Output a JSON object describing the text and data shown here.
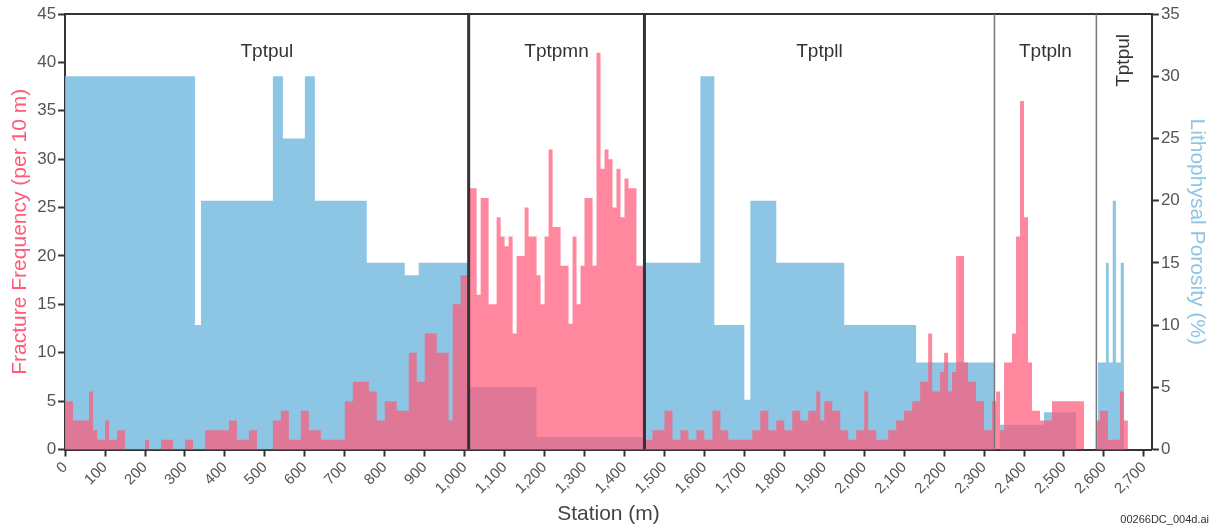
{
  "chart_data": {
    "type": "area",
    "xlabel": "Station (m)",
    "ylabel": "Fracture Frequency (per 10 m)",
    "y2label": "Lithophysal Porosity (%)",
    "xlim": [
      0,
      2720
    ],
    "xticks": [
      0,
      100,
      200,
      300,
      400,
      500,
      600,
      700,
      800,
      900,
      {
        "value": 1000,
        "label": "1,000"
      },
      {
        "value": 1100,
        "label": "1,100"
      },
      {
        "value": 1200,
        "label": "1,200"
      },
      {
        "value": 1300,
        "label": "1,300"
      },
      {
        "value": 1400,
        "label": "1,400"
      },
      {
        "value": 1500,
        "label": "1,500"
      },
      {
        "value": 1600,
        "label": "1,600"
      },
      {
        "value": 1700,
        "label": "1,700"
      },
      {
        "value": 1800,
        "label": "1,800"
      },
      {
        "value": 1900,
        "label": "1,900"
      },
      {
        "value": 2000,
        "label": "2,000"
      },
      {
        "value": 2100,
        "label": "2,100"
      },
      {
        "value": 2200,
        "label": "2,200"
      },
      {
        "value": 2300,
        "label": "2,300"
      },
      {
        "value": 2400,
        "label": "2,400"
      },
      {
        "value": 2500,
        "label": "2,500"
      },
      {
        "value": 2600,
        "label": "2,600"
      },
      {
        "value": 2700,
        "label": "2,700"
      }
    ],
    "ylim": [
      0,
      45
    ],
    "yticks": [
      0,
      5,
      10,
      15,
      20,
      25,
      30,
      35,
      40,
      45
    ],
    "y2lim": [
      0,
      35
    ],
    "y2ticks": [
      0,
      5,
      10,
      15,
      20,
      25,
      30,
      35
    ],
    "series": [
      {
        "color": "#ff5a78",
        "x": [
          0,
          20,
          20,
          60,
          60,
          70,
          70,
          80,
          80,
          100,
          100,
          110,
          110,
          130,
          130,
          150,
          150,
          200,
          200,
          210,
          210,
          240,
          240,
          270,
          270,
          300,
          300,
          320,
          320,
          350,
          350,
          410,
          410,
          430,
          430,
          460,
          460,
          480,
          480,
          520,
          520,
          540,
          540,
          560,
          560,
          590,
          590,
          610,
          610,
          640,
          640,
          700,
          700,
          720,
          720,
          760,
          760,
          780,
          780,
          800,
          800,
          830,
          830,
          860,
          860,
          880,
          880,
          900,
          900,
          930,
          930,
          960,
          960,
          970,
          970,
          990,
          990,
          1010,
          1010,
          1030,
          1030,
          1040,
          1040,
          1060,
          1060,
          1080,
          1080,
          1090,
          1090,
          1100,
          1100,
          1110,
          1110,
          1120,
          1120,
          1130,
          1130,
          1150,
          1150,
          1160,
          1160,
          1180,
          1180,
          1190,
          1190,
          1200,
          1200,
          1210,
          1210,
          1220,
          1220,
          1240,
          1240,
          1260,
          1260,
          1270,
          1270,
          1280,
          1280,
          1290,
          1290,
          1300,
          1300,
          1320,
          1320,
          1330,
          1330,
          1340,
          1340,
          1350,
          1350,
          1360,
          1360,
          1370,
          1370,
          1380,
          1380,
          1390,
          1390,
          1400,
          1400,
          1410,
          1410,
          1430,
          1430,
          1450,
          1450,
          1470,
          1470,
          1500,
          1500,
          1520,
          1520,
          1540,
          1540,
          1560,
          1560,
          1580,
          1580,
          1600,
          1600,
          1620,
          1620,
          1640,
          1640,
          1660,
          1660,
          1720,
          1720,
          1740,
          1740,
          1760,
          1760,
          1780,
          1780,
          1800,
          1800,
          1820,
          1820,
          1840,
          1840,
          1860,
          1860,
          1880,
          1880,
          1890,
          1890,
          1900,
          1900,
          1920,
          1920,
          1940,
          1940,
          1960,
          1960,
          1980,
          1980,
          2000,
          2000,
          2010,
          2010,
          2030,
          2030,
          2060,
          2060,
          2080,
          2080,
          2100,
          2100,
          2120,
          2120,
          2140,
          2140,
          2160,
          2160,
          2170,
          2170,
          2190,
          2190,
          2200,
          2200,
          2210,
          2210,
          2220,
          2220,
          2230,
          2230,
          2250,
          2250,
          2260,
          2260,
          2280,
          2280,
          2300,
          2300,
          2320,
          2320,
          2330,
          2330,
          2340,
          2340,
          2350,
          2350,
          2370,
          2370,
          2380,
          2380,
          2390,
          2390,
          2400,
          2400,
          2410,
          2410,
          2420,
          2420,
          2440,
          2440,
          2470,
          2470,
          2550,
          2550,
          2580,
          2580,
          2590,
          2590,
          2610,
          2610,
          2640,
          2640,
          2650,
          2650,
          2660,
          2660
        ],
        "values": [
          5,
          5,
          3,
          3,
          6,
          6,
          2,
          2,
          1,
          1,
          3,
          3,
          1,
          1,
          2,
          2,
          0,
          0,
          1,
          1,
          0,
          0,
          1,
          1,
          0,
          0,
          1,
          1,
          0,
          0,
          2,
          2,
          3,
          3,
          1,
          1,
          2,
          2,
          0,
          0,
          3,
          3,
          4,
          4,
          1,
          1,
          4,
          4,
          2,
          2,
          1,
          1,
          5,
          5,
          7,
          7,
          6,
          6,
          3,
          3,
          5,
          5,
          4,
          4,
          10,
          10,
          7,
          7,
          12,
          12,
          10,
          10,
          3,
          3,
          15,
          15,
          18,
          18,
          27,
          27,
          16,
          16,
          26,
          26,
          15,
          15,
          24,
          24,
          22,
          22,
          21,
          21,
          22,
          22,
          12,
          12,
          20,
          20,
          25,
          25,
          22,
          22,
          18,
          18,
          15,
          15,
          22,
          22,
          31,
          31,
          23,
          23,
          19,
          19,
          13,
          13,
          22,
          22,
          15,
          15,
          19,
          19,
          26,
          26,
          19,
          19,
          41,
          41,
          29,
          29,
          31,
          31,
          30,
          30,
          25,
          25,
          29,
          29,
          24,
          24,
          28,
          28,
          27,
          27,
          19,
          19,
          1,
          1,
          2,
          2,
          4,
          4,
          1,
          1,
          2,
          2,
          1,
          1,
          2,
          2,
          1,
          1,
          4,
          4,
          2,
          2,
          1,
          1,
          2,
          2,
          4,
          4,
          2,
          2,
          3,
          3,
          2,
          2,
          4,
          4,
          3,
          3,
          4,
          4,
          6,
          6,
          3,
          3,
          5,
          5,
          4,
          4,
          2,
          2,
          1,
          1,
          2,
          2,
          6,
          6,
          2,
          2,
          1,
          1,
          2,
          2,
          3,
          3,
          4,
          4,
          5,
          5,
          7,
          7,
          12,
          12,
          6,
          6,
          8,
          8,
          10,
          10,
          6,
          6,
          8,
          8,
          20,
          20,
          9,
          9,
          7,
          7,
          5,
          5,
          2,
          2,
          5,
          5,
          6,
          6,
          2,
          2,
          9,
          9,
          12,
          12,
          22,
          22,
          36,
          36,
          24,
          24,
          9,
          9,
          4,
          4,
          3,
          3,
          5,
          5,
          0,
          0,
          3,
          3,
          4,
          4,
          1,
          1,
          6,
          6,
          3,
          3,
          0
        ]
      },
      {
        "color": "#8cc6e4",
        "axis": "y2",
        "x": [
          0,
          325,
          325,
          340,
          340,
          520,
          520,
          545,
          545,
          600,
          600,
          625,
          625,
          755,
          755,
          850,
          850,
          885,
          885,
          1010,
          1010,
          1180,
          1180,
          1450,
          1450,
          1590,
          1590,
          1625,
          1625,
          1700,
          1700,
          1715,
          1715,
          1780,
          1780,
          1950,
          1950,
          2130,
          2130,
          2326,
          2326,
          2340,
          2340,
          2450,
          2450,
          2530,
          2530,
          2585,
          2585,
          2605,
          2605,
          2612,
          2612,
          2622,
          2622,
          2630,
          2630,
          2642,
          2642,
          2650,
          2650
        ],
        "values": [
          30,
          30,
          10,
          10,
          20,
          20,
          30,
          30,
          25,
          25,
          30,
          30,
          20,
          20,
          15,
          15,
          14,
          14,
          15,
          15,
          5,
          5,
          1,
          1,
          15,
          15,
          30,
          30,
          10,
          10,
          4,
          4,
          20,
          20,
          15,
          15,
          10,
          10,
          7,
          7,
          0,
          0,
          2,
          2,
          3,
          3,
          0,
          0,
          7,
          7,
          15,
          15,
          7,
          7,
          20,
          20,
          7,
          7,
          15,
          15,
          0
        ]
      }
    ],
    "ref_lines": [
      {
        "axis": "x",
        "value": 1010,
        "color": "#333333"
      },
      {
        "axis": "x",
        "value": 1450,
        "color": "#333333"
      },
      {
        "axis": "x",
        "value": 2326,
        "color": "#777777"
      },
      {
        "axis": "x",
        "value": 2581,
        "color": "#777777"
      }
    ],
    "annotations": [
      "Tptpul",
      "Tptpmn",
      "Tptpll",
      "Tptpln",
      "Tptpul",
      "00266DC_004d.ai"
    ]
  }
}
